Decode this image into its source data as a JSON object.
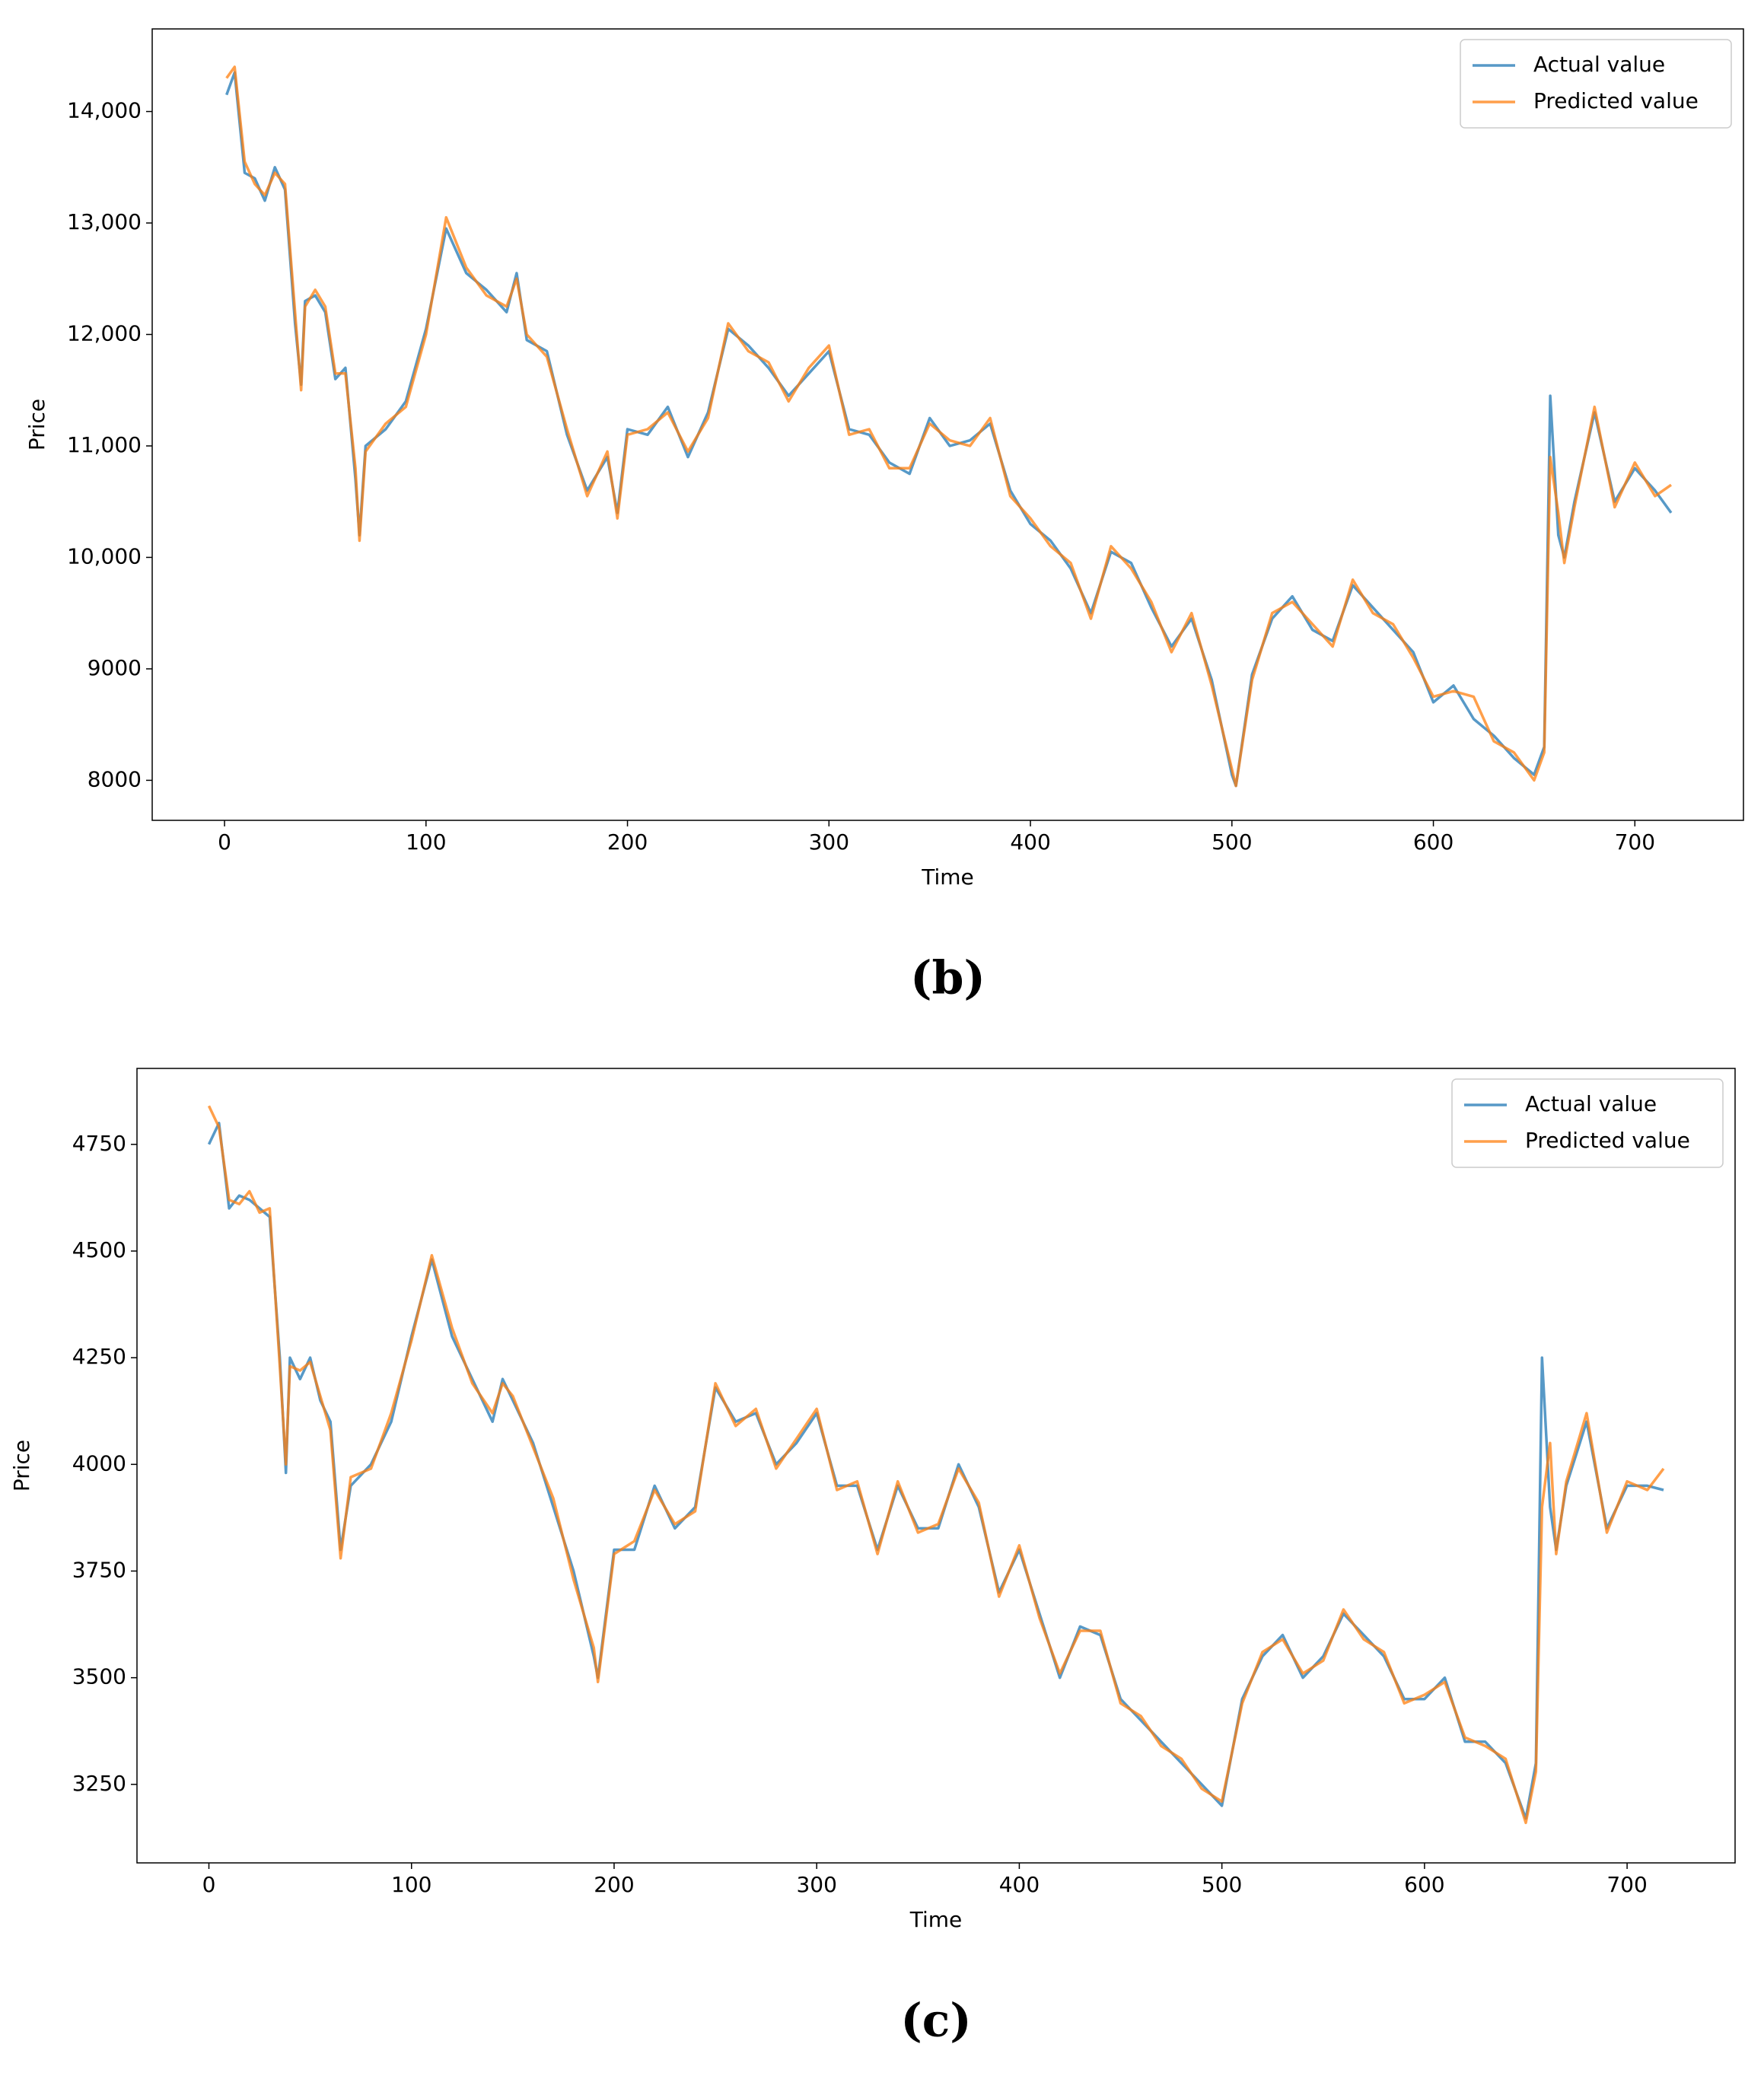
{
  "chart_data": [
    {
      "type": "line",
      "label": "(b)",
      "x_label": "Time",
      "y_label": "Price",
      "legend": "upper right",
      "x": [
        1,
        5,
        10,
        15,
        20,
        25,
        30,
        35,
        38,
        40,
        45,
        50,
        55,
        60,
        65,
        67,
        70,
        80,
        90,
        100,
        110,
        120,
        130,
        140,
        145,
        150,
        160,
        170,
        180,
        190,
        195,
        200,
        210,
        220,
        230,
        240,
        250,
        260,
        270,
        280,
        290,
        300,
        310,
        320,
        330,
        340,
        350,
        360,
        370,
        380,
        390,
        400,
        410,
        420,
        430,
        440,
        450,
        460,
        470,
        480,
        490,
        500,
        502,
        510,
        520,
        530,
        540,
        550,
        560,
        570,
        580,
        590,
        600,
        610,
        620,
        630,
        640,
        650,
        655,
        658,
        662,
        665,
        670,
        680,
        690,
        700,
        710,
        718
      ],
      "series": [
        {
          "name": "Actual value",
          "color": "#1f77b4",
          "values": [
            14150,
            14350,
            13450,
            13400,
            13200,
            13500,
            13300,
            12100,
            11550,
            12300,
            12350,
            12200,
            11600,
            11700,
            10700,
            10200,
            11000,
            11150,
            11400,
            12050,
            12950,
            12550,
            12400,
            12200,
            12550,
            11950,
            11850,
            11100,
            10600,
            10900,
            10400,
            11150,
            11100,
            11350,
            10900,
            11300,
            12050,
            11900,
            11700,
            11450,
            11650,
            11850,
            11150,
            11100,
            10850,
            10750,
            11250,
            11000,
            11050,
            11200,
            10600,
            10300,
            10150,
            9900,
            9500,
            10050,
            9950,
            9550,
            9200,
            9450,
            8900,
            8050,
            7950,
            8950,
            9450,
            9650,
            9350,
            9250,
            9750,
            9550,
            9350,
            9150,
            8700,
            8850,
            8550,
            8400,
            8200,
            8050,
            8300,
            11450,
            10200,
            10000,
            10500,
            11300,
            10500,
            10800,
            10600,
            10400
          ]
        },
        {
          "name": "Predicted value",
          "color": "#ff7f0e",
          "values": [
            14300,
            14400,
            13550,
            13350,
            13250,
            13450,
            13350,
            12200,
            11500,
            12250,
            12400,
            12250,
            11650,
            11650,
            10800,
            10150,
            10950,
            11200,
            11350,
            12000,
            13050,
            12600,
            12350,
            12250,
            12500,
            12000,
            11800,
            11150,
            10550,
            10950,
            10350,
            11100,
            11150,
            11300,
            10950,
            11250,
            12100,
            11850,
            11750,
            11400,
            11700,
            11900,
            11100,
            11150,
            10800,
            10800,
            11200,
            11050,
            11000,
            11250,
            10550,
            10350,
            10100,
            9950,
            9450,
            10100,
            9900,
            9600,
            9150,
            9500,
            8850,
            8100,
            7950,
            8900,
            9500,
            9600,
            9400,
            9200,
            9800,
            9500,
            9400,
            9100,
            8750,
            8800,
            8750,
            8350,
            8250,
            8000,
            8250,
            10900,
            10400,
            9950,
            10450,
            11350,
            10450,
            10850,
            10550,
            10650
          ]
        }
      ],
      "xlim": [
        -35.9,
        753.9
      ],
      "xticks": [
        0,
        100,
        200,
        300,
        400,
        500,
        600,
        700
      ],
      "ylim": [
        7641,
        14741
      ],
      "yticks": [
        8000,
        9000,
        {
          "value": 10000,
          "label": "10,000"
        },
        {
          "value": 11000,
          "label": "11,000"
        },
        {
          "value": 12000,
          "label": "12,000"
        },
        {
          "value": 13000,
          "label": "13,000"
        },
        {
          "value": 14000,
          "label": "14,000"
        }
      ]
    },
    {
      "type": "line",
      "label": "(c)",
      "x_label": "Time",
      "y_label": "Price",
      "legend": "upper right",
      "x": [
        0,
        5,
        10,
        15,
        20,
        25,
        30,
        35,
        38,
        40,
        45,
        50,
        55,
        60,
        65,
        70,
        80,
        90,
        100,
        110,
        120,
        130,
        140,
        145,
        150,
        160,
        170,
        180,
        190,
        192,
        200,
        210,
        220,
        230,
        240,
        250,
        260,
        270,
        280,
        290,
        300,
        310,
        320,
        330,
        340,
        350,
        360,
        370,
        380,
        390,
        400,
        410,
        420,
        430,
        440,
        450,
        460,
        470,
        480,
        490,
        500,
        510,
        520,
        530,
        540,
        550,
        560,
        570,
        580,
        590,
        600,
        610,
        620,
        630,
        640,
        650,
        655,
        658,
        662,
        665,
        670,
        680,
        690,
        700,
        710,
        718
      ],
      "series": [
        {
          "name": "Actual value",
          "color": "#1f77b4",
          "values": [
            4750,
            4800,
            4600,
            4630,
            4620,
            4600,
            4580,
            4250,
            3980,
            4250,
            4200,
            4250,
            4150,
            4100,
            3800,
            3950,
            4000,
            4100,
            4300,
            4480,
            4300,
            4200,
            4100,
            4200,
            4150,
            4050,
            3900,
            3750,
            3550,
            3500,
            3800,
            3800,
            3950,
            3850,
            3900,
            4180,
            4100,
            4120,
            4000,
            4050,
            4120,
            3950,
            3950,
            3800,
            3950,
            3850,
            3850,
            4000,
            3900,
            3700,
            3800,
            3650,
            3500,
            3620,
            3600,
            3450,
            3400,
            3350,
            3300,
            3250,
            3200,
            3450,
            3550,
            3600,
            3500,
            3550,
            3650,
            3600,
            3550,
            3450,
            3450,
            3500,
            3350,
            3350,
            3300,
            3170,
            3300,
            4250,
            3900,
            3800,
            3950,
            4100,
            3850,
            3950,
            3950,
            3940
          ]
        },
        {
          "name": "Predicted value",
          "color": "#ff7f0e",
          "values": [
            4840,
            4790,
            4620,
            4610,
            4640,
            4590,
            4600,
            4230,
            4000,
            4230,
            4220,
            4240,
            4160,
            4080,
            3780,
            3970,
            3990,
            4120,
            4290,
            4490,
            4320,
            4190,
            4120,
            4190,
            4160,
            4040,
            3920,
            3730,
            3570,
            3490,
            3790,
            3820,
            3940,
            3860,
            3890,
            4190,
            4090,
            4130,
            3990,
            4060,
            4130,
            3940,
            3960,
            3790,
            3960,
            3840,
            3860,
            3990,
            3910,
            3690,
            3810,
            3640,
            3510,
            3610,
            3610,
            3440,
            3410,
            3340,
            3310,
            3240,
            3210,
            3440,
            3560,
            3590,
            3510,
            3540,
            3660,
            3590,
            3560,
            3440,
            3460,
            3490,
            3360,
            3340,
            3310,
            3160,
            3280,
            3900,
            4050,
            3790,
            3960,
            4120,
            3840,
            3960,
            3940,
            3990
          ]
        }
      ],
      "xlim": [
        -35.5,
        753.3
      ],
      "xticks": [
        0,
        100,
        200,
        300,
        400,
        500,
        600,
        700
      ],
      "ylim": [
        3066,
        4928
      ],
      "yticks": [
        3250,
        3500,
        3750,
        4000,
        4250,
        4500,
        4750
      ]
    }
  ]
}
